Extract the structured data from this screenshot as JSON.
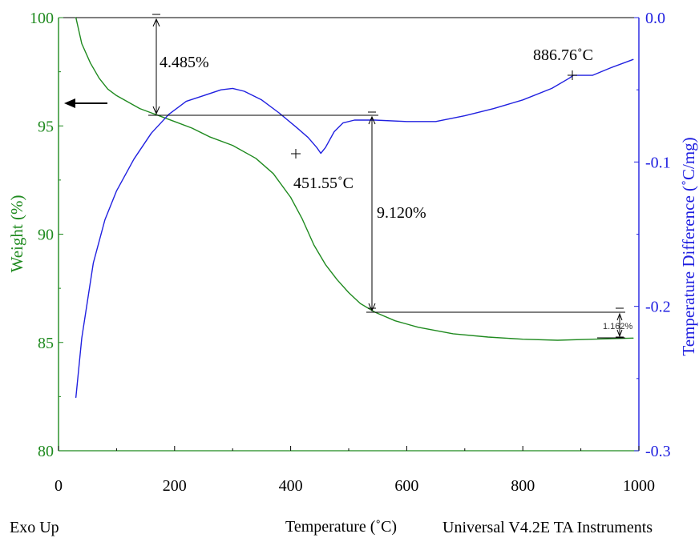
{
  "chart_data": {
    "type": "line",
    "xlabel": "Temperature (˚C)",
    "ylabel_left": "Weight (%)",
    "ylabel_right": "Temperature Difference (˚C/mg)",
    "xlim": [
      0,
      1000
    ],
    "ylim_left": [
      80,
      100
    ],
    "ylim_right": [
      -0.3,
      0.0
    ],
    "x_ticks": [
      "0",
      "200",
      "400",
      "600",
      "800",
      "1000"
    ],
    "x_tick_values": [
      0,
      200,
      400,
      600,
      800,
      1000
    ],
    "y_left_ticks": [
      "80",
      "85",
      "90",
      "95",
      "100"
    ],
    "y_left_tick_values": [
      80,
      85,
      90,
      95,
      100
    ],
    "y_right_ticks": [
      "-0.3",
      "-0.2",
      "-0.1",
      "0.0"
    ],
    "y_right_tick_values": [
      -0.3,
      -0.2,
      -0.1,
      0.0
    ],
    "series": [
      {
        "axis": "left",
        "color": "#1f8a1f",
        "x": [
          30,
          40,
          55,
          70,
          85,
          100,
          120,
          140,
          160,
          170,
          200,
          230,
          260,
          300,
          340,
          370,
          400,
          420,
          440,
          460,
          480,
          500,
          520,
          545,
          580,
          620,
          680,
          740,
          800,
          860,
          920,
          990
        ],
        "y": [
          100.0,
          98.8,
          97.9,
          97.2,
          96.7,
          96.4,
          96.1,
          95.8,
          95.6,
          95.5,
          95.2,
          94.9,
          94.5,
          94.1,
          93.5,
          92.8,
          91.7,
          90.7,
          89.5,
          88.6,
          87.9,
          87.3,
          86.8,
          86.4,
          86.0,
          85.7,
          85.4,
          85.25,
          85.15,
          85.1,
          85.15,
          85.2
        ]
      },
      {
        "axis": "right",
        "color": "#2020e0",
        "x": [
          30,
          40,
          60,
          80,
          100,
          130,
          160,
          190,
          220,
          250,
          280,
          300,
          320,
          350,
          380,
          410,
          430,
          445,
          452,
          460,
          475,
          490,
          510,
          545,
          600,
          650,
          700,
          750,
          800,
          850,
          880,
          887,
          900,
          920,
          950,
          990
        ],
        "y": [
          -0.263,
          -0.222,
          -0.17,
          -0.14,
          -0.12,
          -0.098,
          -0.08,
          -0.067,
          -0.058,
          -0.054,
          -0.05,
          -0.049,
          -0.051,
          -0.057,
          -0.066,
          -0.076,
          -0.083,
          -0.09,
          -0.094,
          -0.09,
          -0.079,
          -0.073,
          -0.071,
          -0.071,
          -0.072,
          -0.072,
          -0.068,
          -0.063,
          -0.057,
          -0.049,
          -0.042,
          -0.04,
          -0.04,
          -0.04,
          -0.035,
          -0.029
        ]
      }
    ],
    "annotations": {
      "step1": "4.485%",
      "step2": "9.120%",
      "step3": "1.162%",
      "peak1": "451.55˚C",
      "peak2": "886.76˚C"
    },
    "footer_left": "Exo Up",
    "footer_right": "Universal V4.2E TA Instruments"
  }
}
